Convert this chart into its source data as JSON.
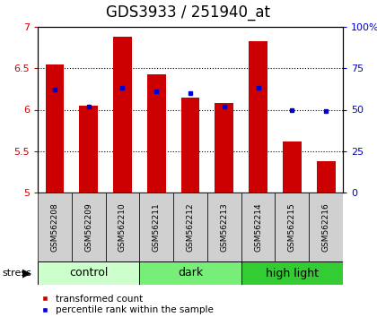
{
  "title": "GDS3933 / 251940_at",
  "samples": [
    "GSM562208",
    "GSM562209",
    "GSM562210",
    "GSM562211",
    "GSM562212",
    "GSM562213",
    "GSM562214",
    "GSM562215",
    "GSM562216"
  ],
  "transformed_counts": [
    6.55,
    6.05,
    6.88,
    6.43,
    6.15,
    6.08,
    6.83,
    5.62,
    5.38
  ],
  "percentile_ranks": [
    62,
    52,
    63,
    61,
    60,
    52,
    63,
    50,
    49
  ],
  "ylim_left": [
    5.0,
    7.0
  ],
  "ylim_right": [
    0,
    100
  ],
  "yticks_left": [
    5.0,
    5.5,
    6.0,
    6.5,
    7.0
  ],
  "yticks_right": [
    0,
    25,
    50,
    75,
    100
  ],
  "ytick_labels_right": [
    "0",
    "25",
    "50",
    "75",
    "100%"
  ],
  "bar_color": "#cc0000",
  "dot_color": "#0000cc",
  "bar_width": 0.55,
  "groups": [
    {
      "label": "control",
      "indices": [
        0,
        1,
        2
      ],
      "color": "#ccffcc"
    },
    {
      "label": "dark",
      "indices": [
        3,
        4,
        5
      ],
      "color": "#77ee77"
    },
    {
      "label": "high light",
      "indices": [
        6,
        7,
        8
      ],
      "color": "#33cc33"
    }
  ],
  "stress_label": "stress",
  "background_color": "#ffffff",
  "plot_bg_color": "#ffffff",
  "tick_label_color_left": "#cc0000",
  "tick_label_color_right": "#0000cc",
  "title_fontsize": 12,
  "tick_fontsize": 8,
  "group_label_fontsize": 9,
  "legend_fontsize": 7.5,
  "sample_fontsize": 6.5,
  "label_bg_color": "#d0d0d0"
}
